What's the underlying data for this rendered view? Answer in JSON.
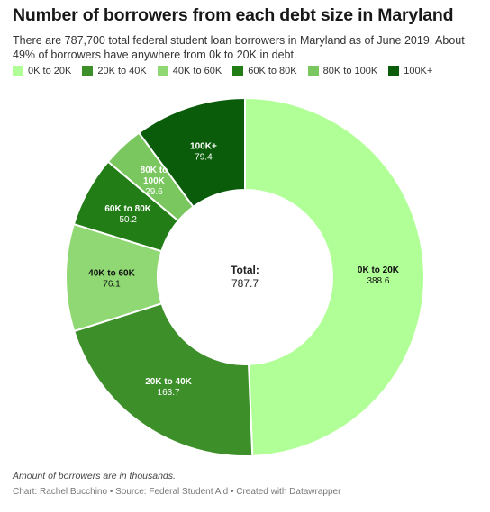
{
  "header": {
    "title": "Number of borrowers from each debt size in Maryland",
    "subtitle": "There are 787,700 total federal student loan borrowers in Maryland as of June 2019. About 49% of borrowers have anywhere from 0k to 20K in debt."
  },
  "chart_data": {
    "type": "pie",
    "categories": [
      "0K to 20K",
      "20K to 40K",
      "40K to 60K",
      "60K to 80K",
      "80K to 100K",
      "100K+"
    ],
    "values": [
      388.6,
      163.7,
      76.1,
      50.2,
      29.6,
      79.4
    ],
    "slice_labels": [
      "0K to 20K",
      "20K to 40K",
      "40K to 60K",
      "60K to 80K",
      "80K to\n100K",
      "100K+"
    ],
    "colors": [
      "#b1ff97",
      "#3d8f2a",
      "#8fd873",
      "#237d17",
      "#7ac75f",
      "#0a5c0a"
    ],
    "label_colors": [
      "#111111",
      "#ffffff",
      "#111111",
      "#ffffff",
      "#ffffff",
      "#ffffff"
    ],
    "center_label": "Total:",
    "center_value": "787.7",
    "legend_position": "top"
  },
  "footer": {
    "note": "Amount of borrowers are in thousands.",
    "source": "Chart: Rachel Bucchino • Source: Federal Student Aid • Created with Datawrapper"
  }
}
